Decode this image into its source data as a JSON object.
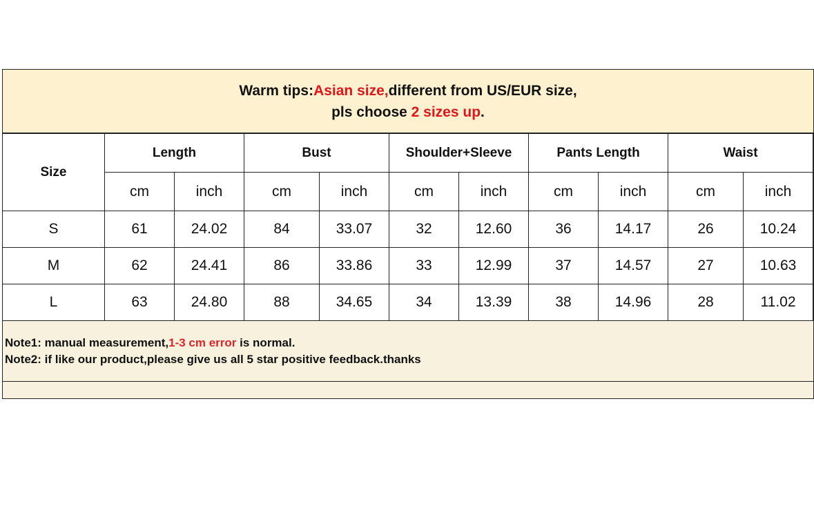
{
  "tips": {
    "line1_prefix": "Warm tips:",
    "line1_red": "Asian size,",
    "line1_suffix": "different from US/EUR size,",
    "line2_prefix": "pls choose ",
    "line2_red": "2 sizes up",
    "line2_suffix": "."
  },
  "table": {
    "size_header": "Size",
    "groups": [
      "Length",
      "Bust",
      "Shoulder+Sleeve",
      "Pants Length",
      "Waist"
    ],
    "units": [
      "cm",
      "inch"
    ],
    "rows": [
      {
        "size": "S",
        "values": [
          "61",
          "24.02",
          "84",
          "33.07",
          "32",
          "12.60",
          "36",
          "14.17",
          "26",
          "10.24"
        ]
      },
      {
        "size": "M",
        "values": [
          "62",
          "24.41",
          "86",
          "33.86",
          "33",
          "12.99",
          "37",
          "14.57",
          "27",
          "10.63"
        ]
      },
      {
        "size": "L",
        "values": [
          "63",
          "24.80",
          "88",
          "34.65",
          "34",
          "13.39",
          "38",
          "14.96",
          "28",
          "11.02"
        ]
      }
    ]
  },
  "notes": {
    "note1_prefix": "Note1: manual measurement,",
    "note1_red": "1-3 cm error",
    "note1_suffix": " is normal.",
    "note2": "Note2: if like our product,please give us all 5 star positive feedback.thanks"
  },
  "colors": {
    "red": "#e0161b",
    "header_bg": "#fdf1cf",
    "notes_bg": "#f8f1de"
  }
}
